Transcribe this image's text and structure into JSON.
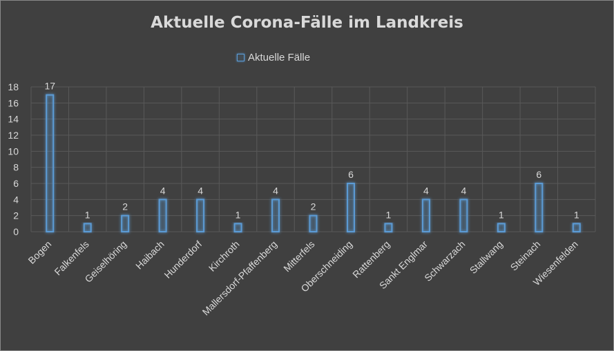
{
  "chart_data": {
    "type": "bar",
    "title": "Aktuelle Corona-Fälle im Landkreis",
    "legend": {
      "position": "top",
      "entries": [
        "Aktuelle Fälle"
      ]
    },
    "xlabel": "",
    "ylabel": "",
    "ylim": [
      0,
      18
    ],
    "yticks": [
      "0",
      "2",
      "4",
      "6",
      "8",
      "10",
      "12",
      "14",
      "16",
      "18"
    ],
    "grid": true,
    "categories": [
      "Bogen",
      "Falkenfels",
      "Geiselhöring",
      "Haibach",
      "Hunderdorf",
      "Kirchroth",
      "Mallersdorf-Pfaffenberg",
      "Mitterfels",
      "Oberschneiding",
      "Rattenberg",
      "Sankt Englmar",
      "Schwarzach",
      "Stallwang",
      "Steinach",
      "Wiesenfelden"
    ],
    "series": [
      {
        "name": "Aktuelle Fälle",
        "values": [
          17,
          1,
          2,
          4,
          4,
          1,
          4,
          2,
          6,
          1,
          4,
          4,
          1,
          6,
          1
        ]
      }
    ],
    "colors": {
      "bar": "#5b9bd5",
      "background": "#404040",
      "grid": "#595959",
      "text": "#d9d9d9"
    }
  }
}
